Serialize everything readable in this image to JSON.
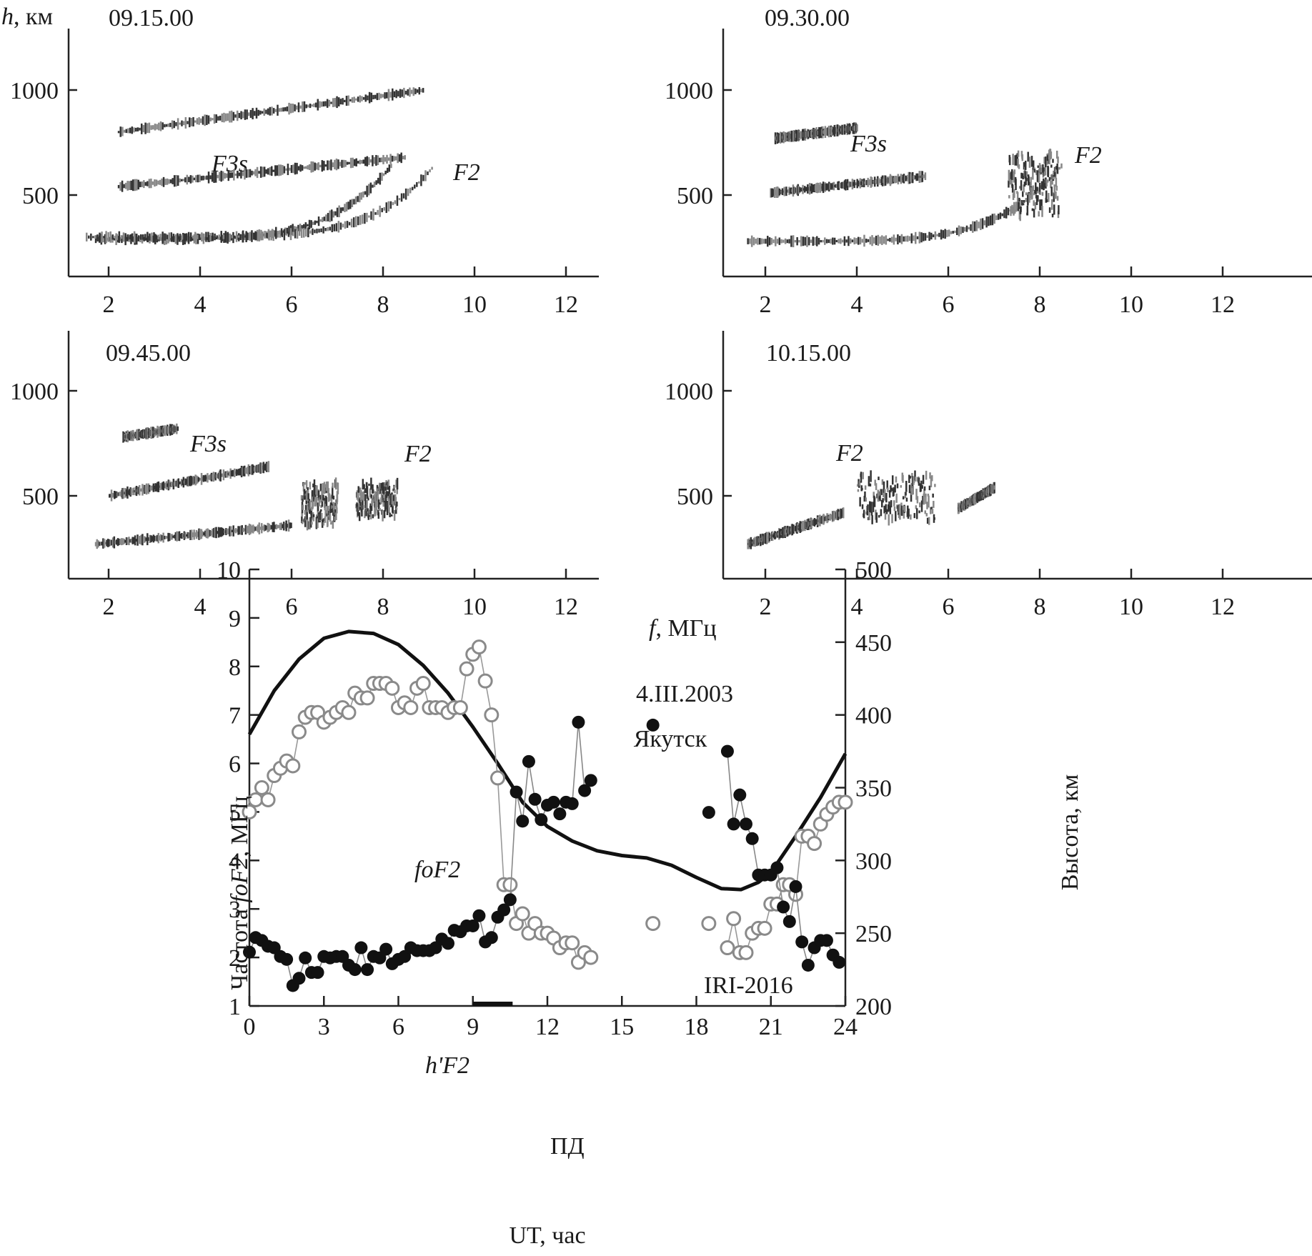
{
  "ionograms": {
    "y_axis_label": "h, км",
    "x_axis_label": "f, МГц",
    "x_ticks": [
      "2",
      "4",
      "6",
      "8",
      "10",
      "12"
    ],
    "y_ticks": [
      "500",
      "1000"
    ],
    "panels": [
      {
        "time": "09.15.00",
        "labels": [
          "F3s",
          "F2"
        ]
      },
      {
        "time": "09.30.00",
        "labels": [
          "F3s",
          "F2"
        ]
      },
      {
        "time": "09.45.00",
        "labels": [
          "F3s",
          "F2"
        ]
      },
      {
        "time": "10.15.00",
        "labels": [
          "F2"
        ]
      }
    ]
  },
  "chart_data": {
    "type": "line",
    "title": "4.III.2003",
    "subtitle": "Якутск",
    "xlabel": "UT, час",
    "ylabel": "Частота foF2, МГц",
    "ylabel_prefix": "Частота ",
    "ylabel_italic": "foF2",
    "ylabel_suffix": ", МГц",
    "y2label": "Высота, км",
    "xlim": [
      0,
      24
    ],
    "ylim": [
      1,
      10
    ],
    "y2lim": [
      200,
      500
    ],
    "x_ticks": [
      "0",
      "3",
      "6",
      "9",
      "12",
      "15",
      "18",
      "21",
      "24"
    ],
    "y_ticks": [
      "1",
      "2",
      "3",
      "4",
      "5",
      "6",
      "7",
      "8",
      "9",
      "10"
    ],
    "y2_ticks": [
      "200",
      "250",
      "300",
      "350",
      "400",
      "450",
      "500"
    ],
    "annotations": {
      "fof2_label": "foF2",
      "hf2_label": "h'F2",
      "iri_label": "IRI-2016",
      "pd_label": "ПД",
      "pd_interval": [
        9.0,
        10.6
      ]
    },
    "series": [
      {
        "name": "IRI-2016",
        "axis": "left",
        "style": "thick-line",
        "points": [
          [
            0,
            6.6
          ],
          [
            1,
            7.5
          ],
          [
            2,
            8.15
          ],
          [
            3,
            8.58
          ],
          [
            4,
            8.72
          ],
          [
            5,
            8.68
          ],
          [
            6,
            8.45
          ],
          [
            7,
            8.02
          ],
          [
            8,
            7.45
          ],
          [
            9,
            6.75
          ],
          [
            10,
            6.0
          ],
          [
            11,
            5.2
          ],
          [
            12,
            4.7
          ],
          [
            13,
            4.4
          ],
          [
            14,
            4.2
          ],
          [
            15,
            4.1
          ],
          [
            16,
            4.05
          ],
          [
            17,
            3.9
          ],
          [
            18,
            3.65
          ],
          [
            19,
            3.42
          ],
          [
            19.8,
            3.4
          ],
          [
            20.5,
            3.55
          ],
          [
            21,
            3.75
          ],
          [
            22,
            4.5
          ],
          [
            23,
            5.3
          ],
          [
            24,
            6.2
          ]
        ]
      },
      {
        "name": "foF2",
        "axis": "left",
        "style": "open-circles",
        "segments": [
          [
            [
              0,
              5.0
            ],
            [
              0.25,
              5.25
            ],
            [
              0.5,
              5.5
            ],
            [
              0.75,
              5.25
            ],
            [
              1.0,
              5.75
            ],
            [
              1.25,
              5.9
            ],
            [
              1.5,
              6.05
            ],
            [
              1.75,
              5.95
            ],
            [
              2.0,
              6.65
            ],
            [
              2.25,
              6.95
            ],
            [
              2.5,
              7.05
            ],
            [
              2.75,
              7.05
            ],
            [
              3.0,
              6.85
            ],
            [
              3.25,
              6.95
            ],
            [
              3.5,
              7.05
            ],
            [
              3.75,
              7.15
            ],
            [
              4.0,
              7.05
            ],
            [
              4.25,
              7.45
            ],
            [
              4.5,
              7.35
            ],
            [
              4.75,
              7.35
            ],
            [
              5.0,
              7.65
            ],
            [
              5.25,
              7.65
            ],
            [
              5.5,
              7.65
            ],
            [
              5.75,
              7.55
            ],
            [
              6.0,
              7.15
            ],
            [
              6.25,
              7.25
            ],
            [
              6.5,
              7.15
            ],
            [
              6.75,
              7.55
            ],
            [
              7.0,
              7.65
            ],
            [
              7.25,
              7.15
            ],
            [
              7.5,
              7.15
            ],
            [
              7.75,
              7.15
            ],
            [
              8.0,
              7.05
            ],
            [
              8.25,
              7.15
            ],
            [
              8.5,
              7.15
            ],
            [
              8.75,
              7.95
            ],
            [
              9.0,
              8.25
            ],
            [
              9.25,
              8.4
            ],
            [
              9.5,
              7.7
            ],
            [
              9.75,
              7.0
            ],
            [
              10.0,
              5.7
            ],
            [
              10.25,
              3.5
            ],
            [
              10.5,
              3.5
            ],
            [
              10.75,
              2.7
            ],
            [
              11.0,
              2.9
            ],
            [
              11.25,
              2.5
            ],
            [
              11.5,
              2.7
            ],
            [
              11.75,
              2.5
            ],
            [
              12.0,
              2.5
            ],
            [
              12.25,
              2.4
            ],
            [
              12.5,
              2.2
            ],
            [
              12.75,
              2.3
            ],
            [
              13.0,
              2.3
            ],
            [
              13.25,
              1.9
            ],
            [
              13.5,
              2.1
            ],
            [
              13.75,
              2.0
            ]
          ],
          [
            [
              16.25,
              2.7
            ]
          ],
          [
            [
              18.5,
              2.7
            ]
          ],
          [
            [
              19.25,
              2.2
            ],
            [
              19.5,
              2.8
            ],
            [
              19.75,
              2.1
            ],
            [
              20.0,
              2.1
            ],
            [
              20.25,
              2.5
            ],
            [
              20.5,
              2.6
            ],
            [
              20.75,
              2.6
            ],
            [
              21.0,
              3.1
            ],
            [
              21.25,
              3.1
            ],
            [
              21.5,
              3.5
            ],
            [
              21.75,
              3.5
            ],
            [
              22.0,
              3.3
            ],
            [
              22.25,
              4.5
            ],
            [
              22.5,
              4.5
            ],
            [
              22.75,
              4.35
            ],
            [
              23.0,
              4.75
            ],
            [
              23.25,
              4.95
            ],
            [
              23.5,
              5.1
            ],
            [
              23.75,
              5.2
            ],
            [
              24.0,
              5.2
            ]
          ]
        ]
      },
      {
        "name": "h'F2",
        "axis": "right",
        "style": "filled-circles",
        "segments": [
          [
            [
              0,
              237
            ],
            [
              0.25,
              247
            ],
            [
              0.5,
              245
            ],
            [
              0.75,
              241
            ],
            [
              1.0,
              240
            ],
            [
              1.25,
              234
            ],
            [
              1.5,
              232
            ],
            [
              1.75,
              214
            ],
            [
              2.0,
              219
            ],
            [
              2.25,
              233
            ],
            [
              2.5,
              223
            ],
            [
              2.75,
              223
            ],
            [
              3.0,
              234
            ],
            [
              3.25,
              233
            ],
            [
              3.5,
              234
            ],
            [
              3.75,
              234
            ],
            [
              4.0,
              228
            ],
            [
              4.25,
              225
            ],
            [
              4.5,
              240
            ],
            [
              4.75,
              225
            ],
            [
              5.0,
              234
            ],
            [
              5.25,
              233
            ],
            [
              5.5,
              239
            ],
            [
              5.75,
              229
            ],
            [
              6.0,
              232
            ],
            [
              6.25,
              234
            ],
            [
              6.5,
              240
            ],
            [
              6.75,
              238
            ],
            [
              7.0,
              238
            ],
            [
              7.25,
              238
            ],
            [
              7.5,
              240
            ],
            [
              7.75,
              246
            ],
            [
              8.0,
              243
            ],
            [
              8.25,
              252
            ],
            [
              8.5,
              251
            ],
            [
              8.75,
              255
            ],
            [
              9.0,
              255
            ],
            [
              9.25,
              262
            ],
            [
              9.5,
              244
            ],
            [
              9.75,
              247
            ],
            [
              10.0,
              261
            ],
            [
              10.25,
              266
            ],
            [
              10.5,
              273
            ],
            [
              10.75,
              347
            ],
            [
              11.0,
              327
            ],
            [
              11.25,
              368
            ],
            [
              11.5,
              342
            ],
            [
              11.75,
              328
            ],
            [
              12.0,
              338
            ],
            [
              12.25,
              340
            ],
            [
              12.5,
              332
            ],
            [
              12.75,
              340
            ],
            [
              13.0,
              339
            ],
            [
              13.25,
              395
            ],
            [
              13.5,
              348
            ],
            [
              13.75,
              355
            ]
          ],
          [
            [
              16.25,
              393
            ]
          ],
          [
            [
              18.5,
              333
            ]
          ],
          [
            [
              19.25,
              375
            ],
            [
              19.5,
              325
            ],
            [
              19.75,
              345
            ],
            [
              20.0,
              325
            ],
            [
              20.25,
              315
            ],
            [
              20.5,
              290
            ],
            [
              20.75,
              290
            ],
            [
              21.0,
              290
            ],
            [
              21.25,
              295
            ],
            [
              21.5,
              268
            ],
            [
              21.75,
              258
            ],
            [
              22.0,
              282
            ],
            [
              22.25,
              244
            ],
            [
              22.5,
              228
            ],
            [
              22.75,
              240
            ],
            [
              23.0,
              245
            ],
            [
              23.25,
              245
            ],
            [
              23.5,
              235
            ],
            [
              23.75,
              230
            ]
          ]
        ]
      }
    ]
  }
}
